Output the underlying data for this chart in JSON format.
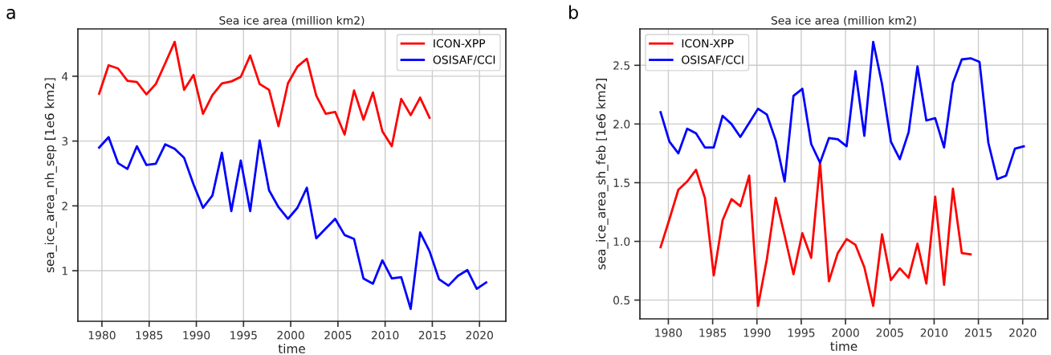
{
  "chart_data": [
    {
      "type": "line",
      "title": "Sea ice area (million km2)",
      "xlabel": "time",
      "ylabel": "sea_ice_area_nh_sep [1e6 km2]",
      "annotations": [
        "a"
      ],
      "legend": "top right",
      "grid": true,
      "x": [
        "1979-09-16",
        "1980-09-16",
        "1981-09-16",
        "1982-09-16",
        "1983-09-16",
        "1984-09-16",
        "1985-09-16",
        "1986-09-16",
        "1987-09-16",
        "1988-09-16",
        "1989-09-16",
        "1990-09-16",
        "1991-09-16",
        "1992-09-16",
        "1993-09-16",
        "1994-09-16",
        "1995-09-16",
        "1996-09-16",
        "1997-09-16",
        "1998-09-16",
        "1999-09-16",
        "2000-09-16",
        "2001-09-16",
        "2002-09-16",
        "2003-09-16",
        "2004-09-16",
        "2005-09-16",
        "2006-09-16",
        "2007-09-16",
        "2008-09-16",
        "2009-09-16",
        "2010-09-16",
        "2011-09-16",
        "2012-09-16",
        "2013-09-16",
        "2014-09-16",
        "2015-09-16",
        "2016-09-16",
        "2017-09-16",
        "2018-09-16",
        "2019-09-16",
        "2020-09-16"
      ],
      "series": [
        {
          "name": "ICON-XPP",
          "color": "#ff0000",
          "values": [
            3.73,
            4.17,
            4.12,
            3.93,
            3.91,
            3.72,
            3.88,
            4.2,
            4.53,
            3.79,
            4.02,
            3.42,
            3.71,
            3.89,
            3.92,
            3.99,
            4.32,
            3.88,
            3.79,
            3.23,
            3.89,
            4.15,
            4.27,
            3.7,
            3.42,
            3.45,
            3.1,
            3.78,
            3.33,
            3.75,
            3.15,
            2.92,
            3.65,
            3.4,
            3.67,
            3.36,
            null,
            null,
            null,
            null,
            null,
            null
          ]
        },
        {
          "name": "OSISAF/CCI",
          "color": "#0000ff",
          "values": [
            2.9,
            3.06,
            2.66,
            2.57,
            2.92,
            2.63,
            2.65,
            2.95,
            2.88,
            2.74,
            2.33,
            1.97,
            2.16,
            2.82,
            1.92,
            2.7,
            1.92,
            3.01,
            2.24,
            1.98,
            1.8,
            1.97,
            2.28,
            1.5,
            1.65,
            1.8,
            1.55,
            1.49,
            0.88,
            0.8,
            1.16,
            0.88,
            0.9,
            0.41,
            1.59,
            1.3,
            0.87,
            0.77,
            0.92,
            1.01,
            0.72,
            0.82
          ]
        }
      ],
      "xlim": [
        "1977-06-15",
        "2022-10-15"
      ],
      "xticks": [
        {
          "value": "1980-01-01",
          "label": "1980"
        },
        {
          "value": "1985-01-01",
          "label": "1985"
        },
        {
          "value": "1990-01-01",
          "label": "1990"
        },
        {
          "value": "1995-01-01",
          "label": "1995"
        },
        {
          "value": "2000-01-01",
          "label": "2000"
        },
        {
          "value": "2005-01-01",
          "label": "2005"
        },
        {
          "value": "2010-01-01",
          "label": "2010"
        },
        {
          "value": "2015-01-01",
          "label": "2015"
        },
        {
          "value": "2020-01-01",
          "label": "2020"
        }
      ],
      "ylim": [
        0.22,
        4.73
      ],
      "yticks": [
        1,
        2,
        3,
        4
      ]
    },
    {
      "type": "line",
      "title": "Sea ice area (million km2)",
      "xlabel": "time",
      "ylabel": "sea_ice_area_sh_feb [1e6 km2]",
      "annotations": [
        "b"
      ],
      "legend": "top left",
      "grid": true,
      "x": [
        "1979-02-15",
        "1980-02-15",
        "1981-02-15",
        "1982-02-15",
        "1983-02-15",
        "1984-02-15",
        "1985-02-15",
        "1986-02-15",
        "1987-02-15",
        "1988-02-15",
        "1989-02-15",
        "1990-02-15",
        "1991-02-15",
        "1992-02-15",
        "1993-02-15",
        "1994-02-15",
        "1995-02-15",
        "1996-02-15",
        "1997-02-15",
        "1998-02-15",
        "1999-02-15",
        "2000-02-15",
        "2001-02-15",
        "2002-02-15",
        "2003-02-15",
        "2004-02-15",
        "2005-02-15",
        "2006-02-15",
        "2007-02-15",
        "2008-02-15",
        "2009-02-15",
        "2010-02-15",
        "2011-02-15",
        "2012-02-15",
        "2013-02-15",
        "2014-02-15",
        "2015-02-15",
        "2016-02-15",
        "2017-02-15",
        "2018-02-15",
        "2019-02-15",
        "2020-02-15"
      ],
      "series": [
        {
          "name": "ICON-XPP",
          "color": "#ff0000",
          "values": [
            0.95,
            1.19,
            1.44,
            1.51,
            1.61,
            1.37,
            0.71,
            1.18,
            1.36,
            1.3,
            1.56,
            0.45,
            0.85,
            1.37,
            1.05,
            0.72,
            1.07,
            0.86,
            1.67,
            0.66,
            0.9,
            1.02,
            0.97,
            0.78,
            0.45,
            1.06,
            0.67,
            0.77,
            0.69,
            0.98,
            0.64,
            1.38,
            0.63,
            1.45,
            0.9,
            0.89,
            null,
            null,
            null,
            null,
            null,
            null
          ]
        },
        {
          "name": "OSISAF/CCI",
          "color": "#0000ff",
          "values": [
            2.1,
            1.85,
            1.75,
            1.96,
            1.92,
            1.8,
            1.8,
            2.07,
            2.0,
            1.89,
            2.01,
            2.13,
            2.08,
            1.86,
            1.51,
            2.24,
            2.3,
            1.83,
            1.67,
            1.88,
            1.87,
            1.81,
            2.45,
            1.9,
            2.7,
            2.34,
            1.85,
            1.7,
            1.93,
            2.49,
            2.03,
            2.05,
            1.8,
            2.35,
            2.55,
            2.56,
            2.53,
            1.84,
            1.53,
            1.56,
            1.79,
            1.81
          ]
        }
      ],
      "xlim": [
        "1976-10-15",
        "2022-11-01"
      ],
      "xticks": [
        {
          "value": "1980-01-01",
          "label": "1980"
        },
        {
          "value": "1985-01-01",
          "label": "1985"
        },
        {
          "value": "1990-01-01",
          "label": "1990"
        },
        {
          "value": "1995-01-01",
          "label": "1995"
        },
        {
          "value": "2000-01-01",
          "label": "2000"
        },
        {
          "value": "2005-01-01",
          "label": "2005"
        },
        {
          "value": "2010-01-01",
          "label": "2010"
        },
        {
          "value": "2015-01-01",
          "label": "2015"
        },
        {
          "value": "2020-01-01",
          "label": "2020"
        }
      ],
      "ylim": [
        0.34,
        2.81
      ],
      "yticks": [
        0.5,
        {
          "value": 1,
          "label": "1.0"
        },
        1.5,
        {
          "value": 2,
          "label": "2.0"
        },
        2.5
      ]
    }
  ]
}
